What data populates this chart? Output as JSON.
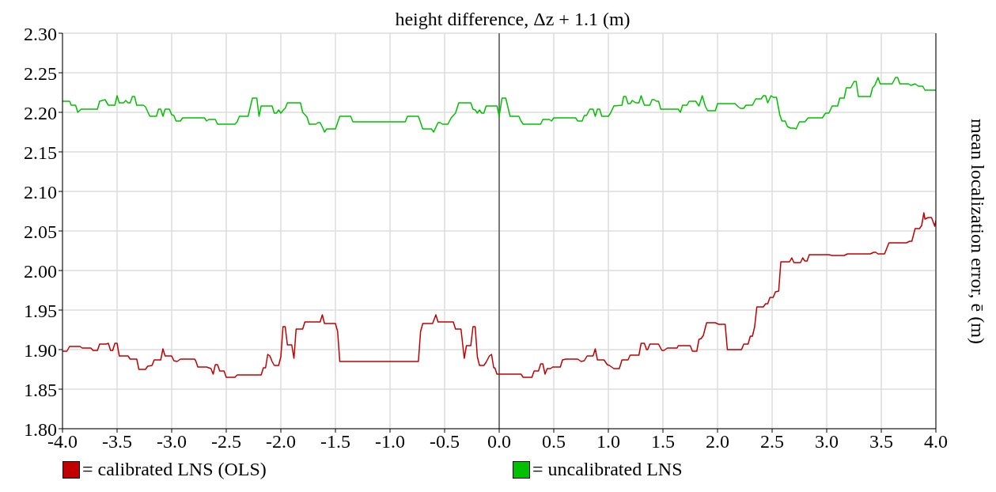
{
  "chart_data": {
    "type": "line",
    "xlabel": "height difference, Δz + 1.1 (m)",
    "ylabel": "mean localization error, ē (m)",
    "xlim": [
      -4,
      4
    ],
    "ylim": [
      1.8,
      2.3
    ],
    "xticks": [
      {
        "value": -4,
        "label": "-4.0"
      },
      {
        "value": -3.5,
        "label": "-3.5"
      },
      {
        "value": -3,
        "label": "-3.0"
      },
      {
        "value": -2.5,
        "label": "-2.5"
      },
      {
        "value": -2,
        "label": "-2.0"
      },
      {
        "value": -1.5,
        "label": "-1.5"
      },
      {
        "value": -1,
        "label": "-1.0"
      },
      {
        "value": -0.5,
        "label": "-0.5"
      },
      {
        "value": 0,
        "label": "0.0"
      },
      {
        "value": 0.5,
        "label": "0.5"
      },
      {
        "value": 1,
        "label": "1.0"
      },
      {
        "value": 1.5,
        "label": "1.5"
      },
      {
        "value": 2,
        "label": "2.0"
      },
      {
        "value": 2.5,
        "label": "2.5"
      },
      {
        "value": 3,
        "label": "3.0"
      },
      {
        "value": 3.5,
        "label": "3.5"
      },
      {
        "value": 4,
        "label": "4.0"
      }
    ],
    "yticks": [
      {
        "value": 1.8,
        "label": "1.80"
      },
      1.85,
      {
        "value": 1.9,
        "label": "1.90"
      },
      1.95,
      {
        "value": 2,
        "label": "2.00"
      },
      2.05,
      {
        "value": 2.1,
        "label": "2.10"
      },
      2.15,
      {
        "value": 2.2,
        "label": "2.20"
      },
      2.25,
      {
        "value": 2.3,
        "label": "2.30"
      }
    ],
    "grid": true,
    "legend": "bottom",
    "marker": "none",
    "line_style": "solid",
    "ref_lines": [
      {
        "axis": "x",
        "value": 0,
        "color": "#555555"
      }
    ],
    "series": [
      {
        "name": "= calibrated LNS (OLS)",
        "color": "#c00000",
        "x": [
          -4.0,
          -3.96,
          -3.935,
          -3.84,
          -3.82,
          -3.74,
          -3.72,
          -3.68,
          -3.66,
          -3.6,
          -3.58,
          -3.56,
          -3.54,
          -3.52,
          -3.5,
          -3.48,
          -3.4,
          -3.38,
          -3.32,
          -3.3,
          -3.24,
          -3.22,
          -3.18,
          -3.16,
          -3.1,
          -3.08,
          -3.06,
          -3.0,
          -2.98,
          -2.95,
          -2.92,
          -2.79,
          -2.78,
          -2.76,
          -2.68,
          -2.66,
          -2.64,
          -2.62,
          -2.6,
          -2.58,
          -2.56,
          -2.52,
          -2.5,
          -2.42,
          -2.4,
          -2.18,
          -2.16,
          -2.14,
          -2.12,
          -2.1,
          -2.08,
          -2.06,
          -2.02,
          -2.0,
          -1.98,
          -1.96,
          -1.94,
          -1.9,
          -1.88,
          -1.86,
          -1.8,
          -1.78,
          -1.64,
          -1.62,
          -1.6,
          -1.5,
          -1.48,
          -1.46,
          -0.74,
          -0.72,
          -0.7,
          -0.61,
          -0.58,
          -0.56,
          -0.42,
          -0.4,
          -0.35,
          -0.32,
          -0.3,
          -0.26,
          -0.24,
          -0.22,
          -0.2,
          -0.18,
          -0.14,
          -0.12,
          -0.09,
          -0.07,
          -0.05,
          -0.04,
          -0.02,
          0.2,
          0.22,
          0.3,
          0.32,
          0.36,
          0.38,
          0.4,
          0.42,
          0.44,
          0.47,
          0.49,
          0.56,
          0.58,
          0.61,
          0.72,
          0.75,
          0.78,
          0.805,
          0.86,
          0.88,
          0.9,
          0.96,
          0.99,
          1.01,
          1.05,
          1.1,
          1.125,
          1.18,
          1.2,
          1.28,
          1.3,
          1.33,
          1.35,
          1.36,
          1.38,
          1.46,
          1.49,
          1.51,
          1.54,
          1.63,
          1.64,
          1.75,
          1.77,
          1.81,
          1.83,
          1.85,
          1.87,
          1.9,
          1.98,
          2.01,
          2.07,
          2.09,
          2.22,
          2.24,
          2.28,
          2.3,
          2.32,
          2.34,
          2.36,
          2.42,
          2.44,
          2.46,
          2.48,
          2.51,
          2.53,
          2.56,
          2.58,
          2.66,
          2.68,
          2.7,
          2.76,
          2.78,
          2.8,
          2.82,
          2.84,
          3.02,
          3.05,
          3.16,
          3.19,
          3.4,
          3.43,
          3.45,
          3.47,
          3.53,
          3.57,
          3.73,
          3.76,
          3.78,
          3.81,
          3.85,
          3.87,
          3.89,
          3.9,
          3.93,
          3.96,
          3.99,
          4.0
        ],
        "values": [
          1.898,
          1.898,
          1.904,
          1.904,
          1.902,
          1.902,
          1.899,
          1.899,
          1.907,
          1.907,
          1.908,
          1.899,
          1.899,
          1.908,
          1.908,
          1.892,
          1.892,
          1.888,
          1.888,
          1.875,
          1.875,
          1.879,
          1.88,
          1.887,
          1.887,
          1.901,
          1.892,
          1.892,
          1.886,
          1.885,
          1.888,
          1.888,
          1.886,
          1.878,
          1.878,
          1.877,
          1.876,
          1.869,
          1.881,
          1.881,
          1.873,
          1.873,
          1.865,
          1.865,
          1.868,
          1.868,
          1.877,
          1.877,
          1.894,
          1.892,
          1.885,
          1.88,
          1.88,
          1.891,
          1.929,
          1.929,
          1.906,
          1.906,
          1.889,
          1.926,
          1.926,
          1.935,
          1.935,
          1.944,
          1.933,
          1.933,
          1.923,
          1.885,
          1.885,
          1.923,
          1.933,
          1.933,
          1.944,
          1.935,
          1.935,
          1.926,
          1.926,
          1.889,
          1.905,
          1.905,
          1.929,
          1.929,
          1.891,
          1.88,
          1.88,
          1.884,
          1.892,
          1.894,
          1.877,
          1.877,
          1.869,
          1.869,
          1.865,
          1.865,
          1.873,
          1.873,
          1.882,
          1.882,
          1.869,
          1.876,
          1.876,
          1.878,
          1.878,
          1.887,
          1.888,
          1.888,
          1.885,
          1.886,
          1.892,
          1.892,
          1.901,
          1.887,
          1.887,
          1.881,
          1.88,
          1.876,
          1.876,
          1.887,
          1.887,
          1.893,
          1.893,
          1.908,
          1.908,
          1.9,
          1.9,
          1.907,
          1.907,
          1.899,
          1.899,
          1.902,
          1.902,
          1.905,
          1.905,
          1.898,
          1.898,
          1.913,
          1.914,
          1.918,
          1.934,
          1.934,
          1.932,
          1.932,
          1.9,
          1.9,
          1.907,
          1.907,
          1.917,
          1.917,
          1.929,
          1.954,
          1.954,
          1.958,
          1.958,
          1.966,
          1.966,
          1.973,
          1.974,
          2.011,
          2.011,
          2.016,
          2.01,
          2.01,
          2.016,
          2.012,
          2.012,
          2.02,
          2.02,
          2.019,
          2.019,
          2.021,
          2.021,
          2.023,
          2.023,
          2.021,
          2.021,
          2.035,
          2.035,
          2.037,
          2.037,
          2.053,
          2.053,
          2.057,
          2.073,
          2.065,
          2.067,
          2.067,
          2.056,
          2.063
        ]
      },
      {
        "name": "= uncalibrated LNS",
        "color": "#00c000",
        "x": [
          -4.0,
          -3.935,
          -3.92,
          -3.88,
          -3.86,
          -3.83,
          -3.68,
          -3.66,
          -3.61,
          -3.58,
          -3.52,
          -3.5,
          -3.48,
          -3.44,
          -3.42,
          -3.4,
          -3.38,
          -3.36,
          -3.34,
          -3.32,
          -3.26,
          -3.24,
          -3.2,
          -3.14,
          -3.12,
          -3.1,
          -3.08,
          -3.06,
          -3.02,
          -3.0,
          -2.98,
          -2.96,
          -2.92,
          -2.9,
          -2.7,
          -2.68,
          -2.66,
          -2.6,
          -2.58,
          -2.42,
          -2.4,
          -2.38,
          -2.3,
          -2.26,
          -2.22,
          -2.2,
          -2.18,
          -2.08,
          -2.06,
          -2.04,
          -2.02,
          -2.0,
          -1.97,
          -1.96,
          -1.94,
          -1.82,
          -1.8,
          -1.76,
          -1.74,
          -1.68,
          -1.66,
          -1.64,
          -1.615,
          -1.6,
          -1.58,
          -1.5,
          -1.46,
          -1.36,
          -1.34,
          -0.86,
          -0.84,
          -0.74,
          -0.7,
          -0.62,
          -0.6,
          -0.56,
          -0.54,
          -0.52,
          -0.47,
          -0.44,
          -0.4,
          -0.37,
          -0.26,
          -0.24,
          -0.22,
          -0.2,
          -0.18,
          -0.16,
          -0.14,
          -0.12,
          -0.02,
          0.0,
          0.026,
          0.06,
          0.1,
          0.18,
          0.2,
          0.22,
          0.38,
          0.4,
          0.46,
          0.48,
          0.5,
          0.7,
          0.72,
          0.76,
          0.78,
          0.8,
          0.83,
          0.86,
          0.88,
          0.9,
          0.92,
          0.94,
          1.0,
          1.02,
          1.05,
          1.125,
          1.14,
          1.16,
          1.18,
          1.2,
          1.22,
          1.25,
          1.28,
          1.3,
          1.33,
          1.38,
          1.4,
          1.42,
          1.44,
          1.46,
          1.48,
          1.64,
          1.66,
          1.68,
          1.72,
          1.74,
          1.8,
          1.83,
          1.86,
          1.89,
          1.91,
          1.98,
          2.0,
          2.16,
          2.19,
          2.21,
          2.24,
          2.26,
          2.32,
          2.35,
          2.4,
          2.42,
          2.44,
          2.46,
          2.49,
          2.51,
          2.54,
          2.57,
          2.59,
          2.62,
          2.64,
          2.67,
          2.7,
          2.72,
          2.75,
          2.8,
          2.83,
          2.96,
          2.99,
          3.02,
          3.05,
          3.1,
          3.12,
          3.16,
          3.18,
          3.22,
          3.25,
          3.27,
          3.29,
          3.4,
          3.42,
          3.44,
          3.47,
          3.49,
          3.6,
          3.63,
          3.65,
          3.67,
          3.75,
          3.77,
          3.81,
          3.84,
          3.88,
          3.9,
          4.0
        ],
        "values": [
          2.214,
          2.214,
          2.209,
          2.209,
          2.2,
          2.204,
          2.204,
          2.214,
          2.216,
          2.209,
          2.209,
          2.221,
          2.212,
          2.212,
          2.215,
          2.212,
          2.212,
          2.22,
          2.22,
          2.209,
          2.209,
          2.207,
          2.195,
          2.195,
          2.204,
          2.204,
          2.195,
          2.204,
          2.204,
          2.197,
          2.196,
          2.189,
          2.189,
          2.193,
          2.193,
          2.189,
          2.191,
          2.191,
          2.185,
          2.185,
          2.188,
          2.195,
          2.195,
          2.218,
          2.218,
          2.195,
          2.208,
          2.208,
          2.199,
          2.199,
          2.203,
          2.199,
          2.204,
          2.205,
          2.212,
          2.212,
          2.2,
          2.194,
          2.185,
          2.185,
          2.187,
          2.187,
          2.18,
          2.175,
          2.179,
          2.179,
          2.195,
          2.195,
          2.188,
          2.188,
          2.195,
          2.195,
          2.179,
          2.179,
          2.175,
          2.187,
          2.187,
          2.185,
          2.185,
          2.193,
          2.199,
          2.212,
          2.212,
          2.204,
          2.203,
          2.199,
          2.203,
          2.199,
          2.199,
          2.208,
          2.208,
          2.195,
          2.218,
          2.218,
          2.195,
          2.195,
          2.189,
          2.185,
          2.185,
          2.191,
          2.191,
          2.189,
          2.193,
          2.193,
          2.189,
          2.189,
          2.196,
          2.196,
          2.204,
          2.204,
          2.195,
          2.204,
          2.204,
          2.195,
          2.195,
          2.199,
          2.208,
          2.209,
          2.22,
          2.22,
          2.211,
          2.211,
          2.215,
          2.212,
          2.212,
          2.221,
          2.209,
          2.209,
          2.216,
          2.216,
          2.214,
          2.214,
          2.204,
          2.204,
          2.2,
          2.209,
          2.209,
          2.214,
          2.214,
          2.208,
          2.221,
          2.207,
          2.202,
          2.202,
          2.211,
          2.211,
          2.207,
          2.205,
          2.205,
          2.209,
          2.209,
          2.217,
          2.217,
          2.221,
          2.221,
          2.212,
          2.221,
          2.219,
          2.219,
          2.197,
          2.189,
          2.189,
          2.182,
          2.18,
          2.18,
          2.179,
          2.188,
          2.188,
          2.193,
          2.193,
          2.199,
          2.199,
          2.208,
          2.208,
          2.218,
          2.218,
          2.231,
          2.231,
          2.239,
          2.239,
          2.22,
          2.22,
          2.231,
          2.234,
          2.244,
          2.236,
          2.236,
          2.244,
          2.244,
          2.236,
          2.236,
          2.234,
          2.236,
          2.233,
          2.233,
          2.228,
          2.228
        ]
      }
    ]
  }
}
